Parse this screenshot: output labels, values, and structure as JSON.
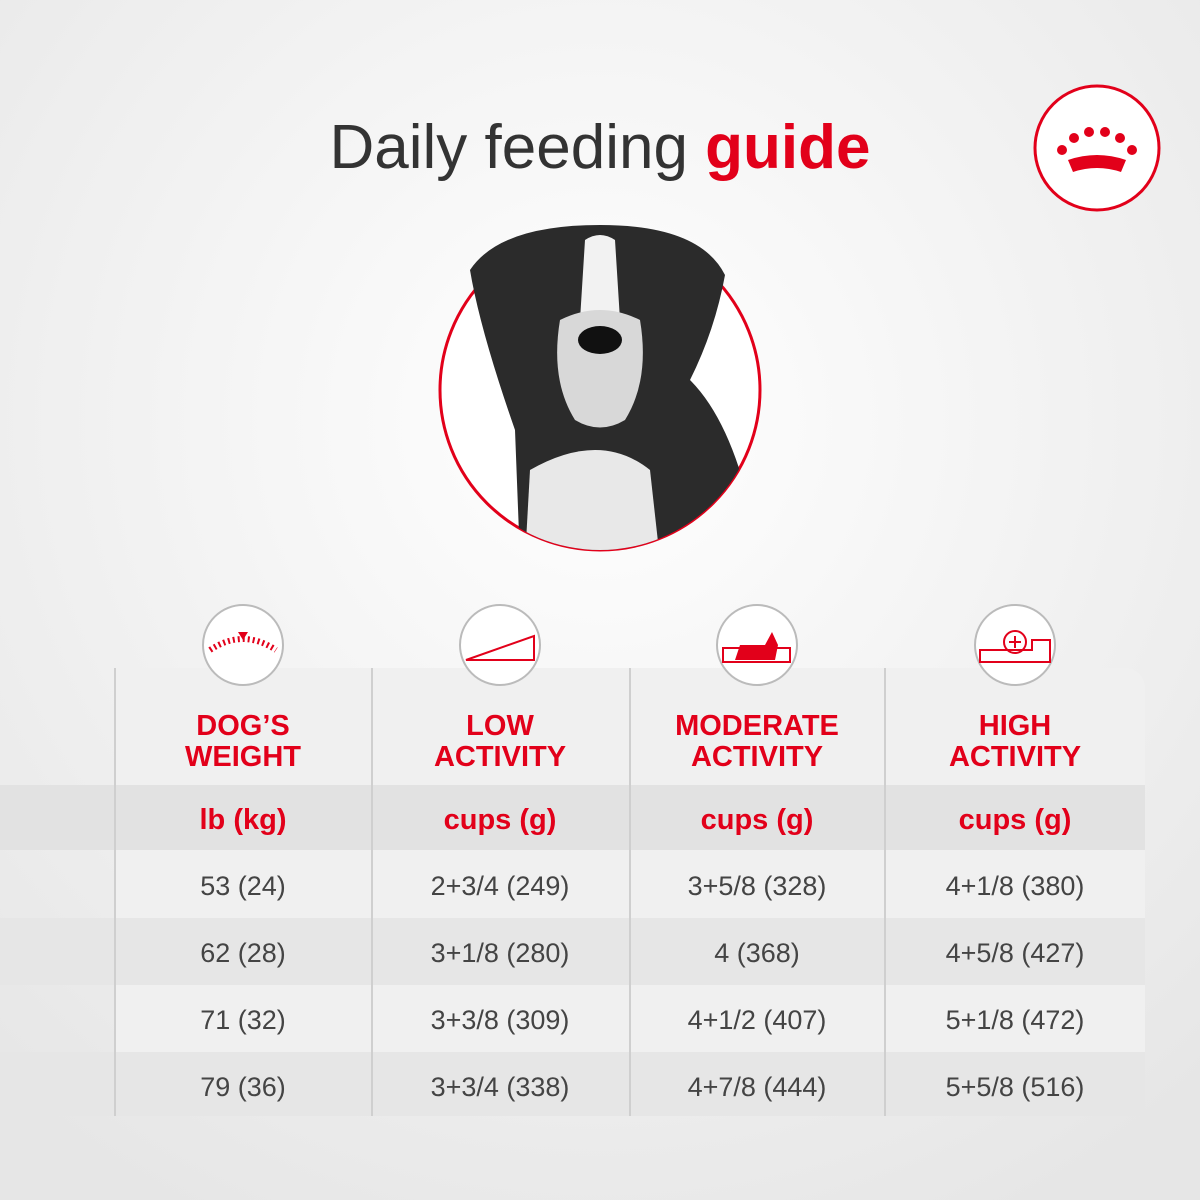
{
  "header": {
    "title": "Daily feeding",
    "title_highlight": "guide"
  },
  "table": {
    "columns": [
      {
        "label_lines": [
          "DOG’S",
          "WEIGHT"
        ],
        "unit": "lb (kg)"
      },
      {
        "label_lines": [
          "LOW",
          "ACTIVITY"
        ],
        "unit": "cups (g)"
      },
      {
        "label_lines": [
          "MODERATE",
          "ACTIVITY"
        ],
        "unit": "cups (g)"
      },
      {
        "label_lines": [
          "HIGH",
          "ACTIVITY"
        ],
        "unit": "cups (g)"
      }
    ],
    "rows": [
      [
        "53 (24)",
        "2+3/4 (249)",
        "3+5/8 (328)",
        "4+1/8 (380)"
      ],
      [
        "62 (28)",
        "3+1/8 (280)",
        "4 (368)",
        "4+5/8 (427)"
      ],
      [
        "71 (32)",
        "3+3/8 (309)",
        "4+1/2 (407)",
        "5+1/8 (472)"
      ],
      [
        "79 (36)",
        "3+3/4 (338)",
        "4+7/8 (444)",
        "5+5/8 (516)"
      ]
    ]
  }
}
